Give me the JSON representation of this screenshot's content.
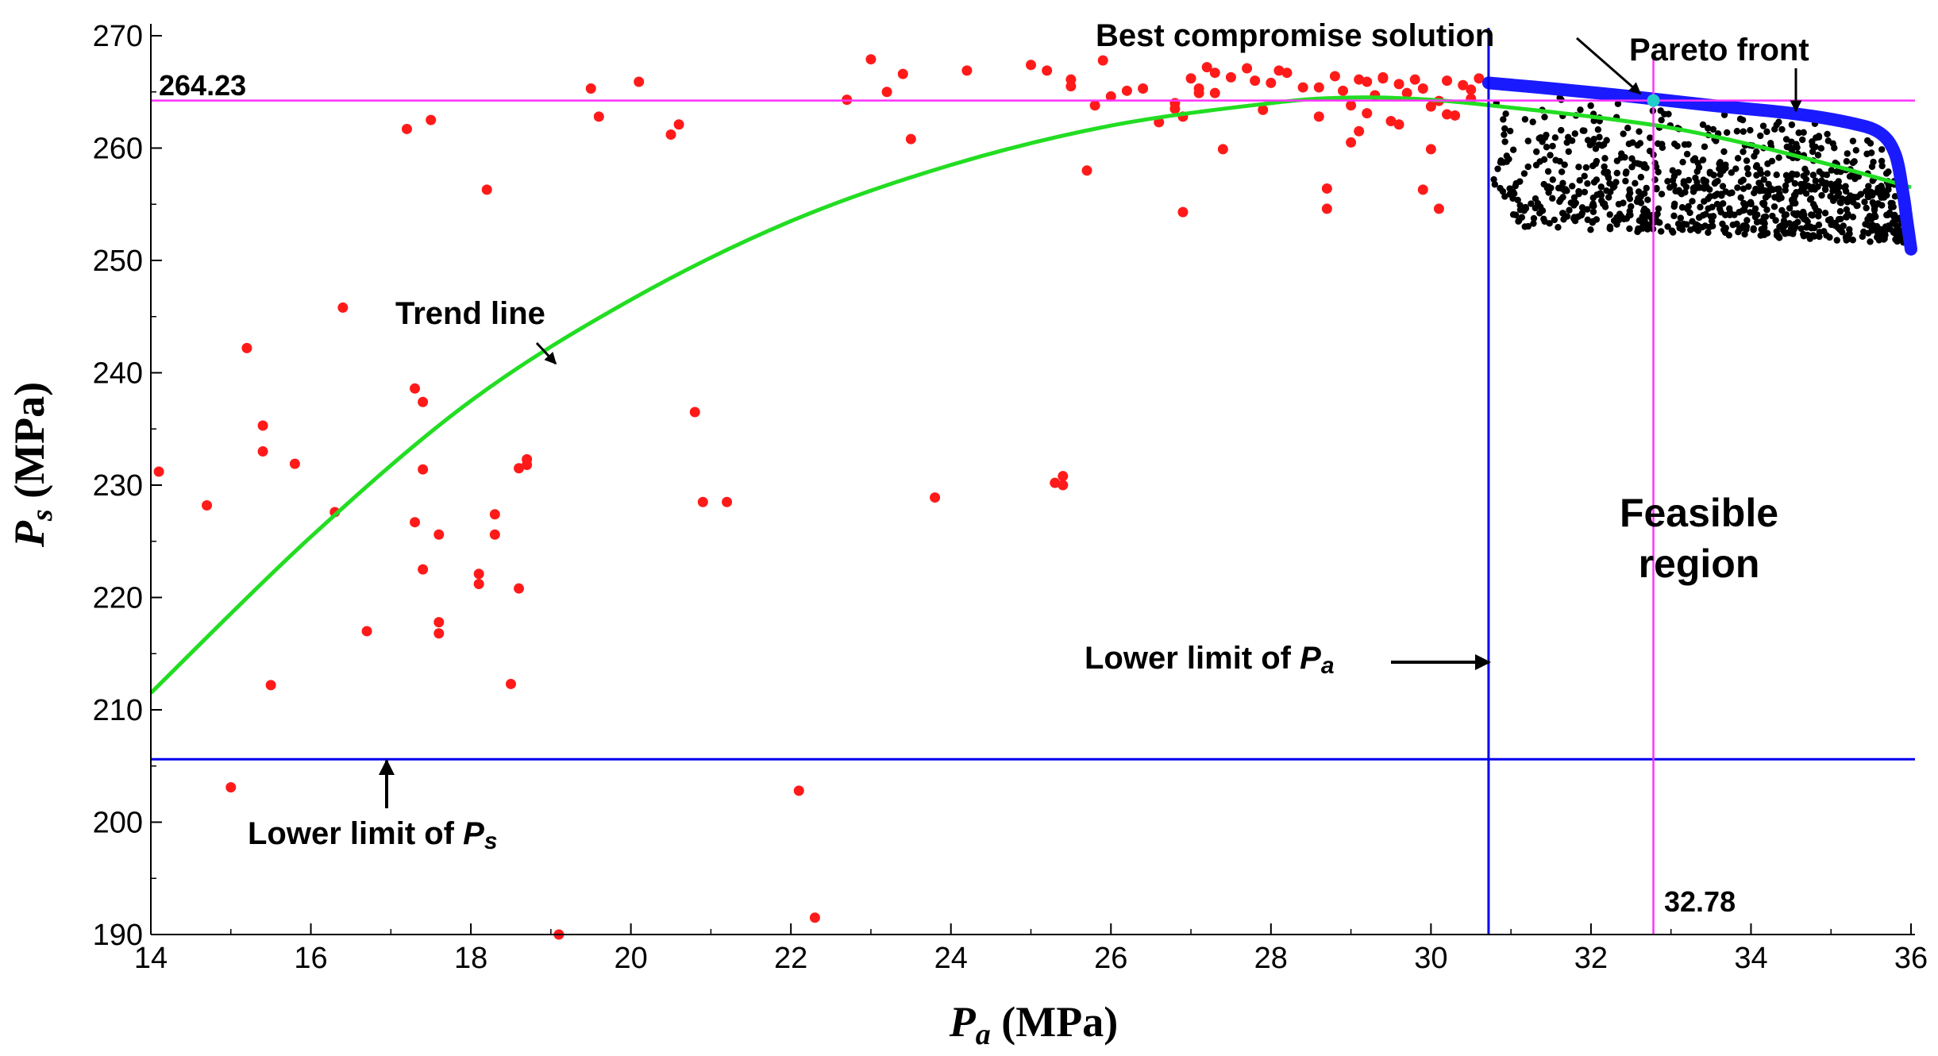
{
  "chart_data": {
    "type": "scatter",
    "title": "",
    "xlabel": {
      "main": "P",
      "sub": "a",
      "unit": " (MPa)"
    },
    "ylabel": {
      "main": "P",
      "sub": "s",
      "unit": " (MPa)"
    },
    "xlim": [
      14,
      36
    ],
    "ylim": [
      190,
      271
    ],
    "xticks": [
      14,
      16,
      18,
      20,
      22,
      24,
      26,
      28,
      30,
      32,
      34,
      36
    ],
    "yticks": [
      190,
      200,
      210,
      220,
      230,
      240,
      250,
      260,
      270
    ],
    "grid": false,
    "colors": {
      "infeasible": "#ff1a1a",
      "feasible": "#000000",
      "pareto": "#1a1aff",
      "trend": "#22dd22",
      "limit_lines": "#0000ee",
      "best_lines": "#ff33ff",
      "best_point": "#22cccc"
    },
    "lower_limit_pa": 30.72,
    "lower_limit_ps": 205.6,
    "best_solution": {
      "x": 32.78,
      "y": 264.23,
      "x_label": "32.78",
      "y_label": "264.23"
    },
    "trend_line": {
      "x": [
        14,
        16,
        18,
        20,
        22,
        24,
        26,
        28,
        29,
        30,
        31,
        32,
        33,
        34,
        35,
        36
      ],
      "y": [
        211.5,
        225.4,
        237.5,
        246.5,
        253.5,
        258.5,
        262,
        264,
        264.5,
        264.3,
        263.6,
        262.8,
        261.8,
        260.3,
        258.5,
        256.5
      ]
    },
    "pareto_front": {
      "x": [
        30.72,
        31.5,
        32.5,
        33.5,
        34.5,
        35.2,
        35.6,
        35.8,
        35.9,
        35.95,
        36.0
      ],
      "y": [
        265.8,
        265.3,
        264.6,
        263.8,
        263.1,
        262.3,
        261.4,
        259.5,
        256.0,
        253.5,
        251.0
      ]
    },
    "infeasible_points": {
      "x": [
        14.1,
        14.7,
        15.0,
        15.2,
        15.4,
        15.4,
        15.5,
        15.8,
        16.3,
        16.4,
        16.7,
        17.2,
        17.3,
        17.3,
        17.4,
        17.4,
        17.4,
        17.5,
        17.6,
        17.6,
        17.6,
        18.1,
        18.1,
        18.2,
        18.3,
        18.3,
        18.5,
        18.6,
        18.6,
        18.7,
        18.7,
        19.1,
        19.5,
        19.6,
        20.1,
        20.5,
        20.6,
        20.8,
        20.9,
        21.2,
        22.1,
        22.3,
        22.7,
        23.0,
        23.2,
        23.4,
        23.5,
        23.8,
        24.2,
        25.0,
        25.2,
        25.3,
        25.4,
        25.4,
        25.5,
        25.5,
        25.7,
        25.8,
        25.9,
        26.0,
        26.2,
        26.4,
        26.6,
        26.8,
        26.9,
        27.0,
        27.1,
        27.2,
        27.3,
        27.4,
        27.5,
        27.7,
        27.8,
        27.9,
        28.0,
        28.1,
        28.2,
        28.4,
        28.6,
        28.8,
        28.9,
        29.0,
        29.1,
        29.2,
        29.3,
        29.4,
        29.5,
        29.6,
        29.7,
        29.8,
        29.9,
        30.0,
        30.1,
        30.2,
        30.3,
        30.4,
        30.5,
        30.6,
        28.7,
        28.7,
        29.0,
        29.2,
        27.3,
        26.9,
        29.9,
        30.0,
        30.1,
        29.4,
        28.6,
        29.6,
        27.1,
        26.8,
        29.1,
        30.5,
        30.2
      ],
      "y": [
        231.2,
        228.2,
        203.1,
        242.2,
        235.3,
        233.0,
        212.2,
        231.9,
        227.6,
        245.8,
        217.0,
        261.7,
        238.6,
        226.7,
        231.4,
        222.5,
        237.4,
        262.5,
        217.8,
        216.8,
        225.6,
        221.2,
        222.1,
        256.3,
        227.4,
        225.6,
        212.3,
        220.8,
        231.5,
        231.8,
        232.3,
        190.0,
        265.3,
        262.8,
        265.9,
        261.2,
        262.1,
        236.5,
        228.5,
        228.5,
        202.8,
        191.5,
        264.3,
        267.9,
        265.0,
        266.6,
        260.8,
        228.9,
        266.9,
        267.4,
        266.9,
        230.2,
        230.0,
        230.8,
        266.1,
        265.5,
        258.0,
        263.8,
        267.8,
        264.6,
        265.1,
        265.3,
        262.3,
        263.5,
        254.3,
        266.2,
        265.3,
        267.2,
        264.9,
        259.9,
        266.3,
        267.1,
        266.0,
        263.4,
        265.8,
        266.9,
        266.7,
        265.4,
        262.8,
        266.4,
        265.1,
        263.8,
        261.5,
        265.9,
        264.7,
        266.2,
        262.4,
        265.7,
        264.9,
        266.1,
        265.3,
        263.7,
        264.2,
        266.0,
        262.9,
        265.6,
        264.4,
        266.2,
        254.6,
        256.4,
        260.5,
        263.1,
        266.7,
        262.8,
        256.3,
        259.9,
        254.6,
        266.3,
        265.4,
        262.1,
        264.9,
        264.0,
        266.1,
        265.2,
        263.0
      ]
    },
    "annotations": {
      "best_compromise": "Best compromise solution",
      "pareto_front": "Pareto front",
      "trend_line": "Trend line",
      "feasible_line1": "Feasible",
      "feasible_line2": "region",
      "lower_limit_prefix": "Lower limit of ",
      "pa_main": "P",
      "pa_sub": "a",
      "ps_main": "P",
      "ps_sub": "s"
    }
  }
}
